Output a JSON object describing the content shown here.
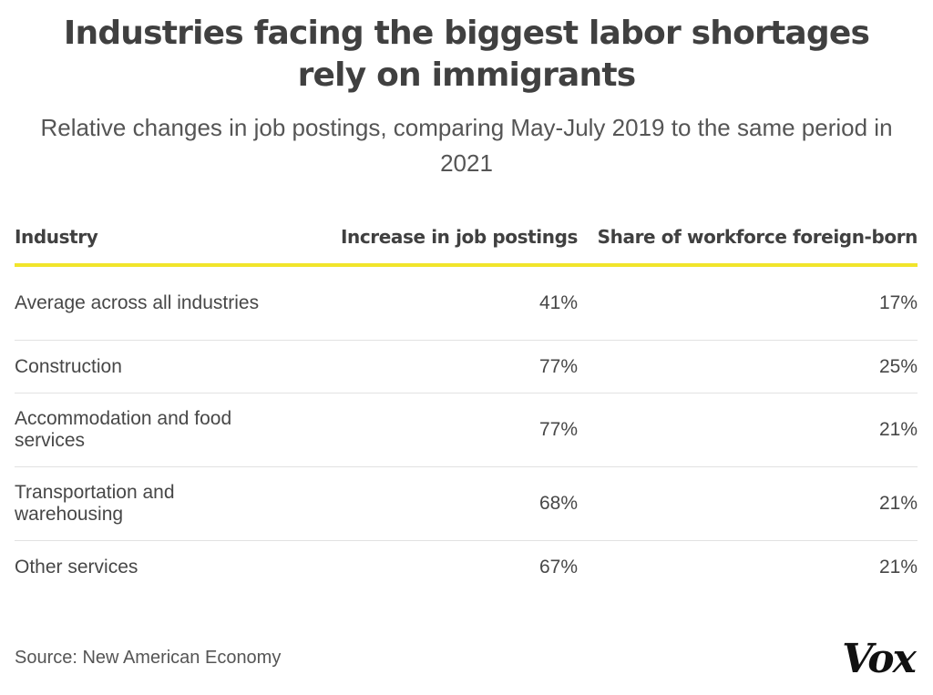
{
  "chart_data": {
    "type": "table",
    "title": "Industries facing the biggest labor shortages rely on immigrants",
    "subtitle": "Relative changes in job postings, comparing May-July 2019 to the same period in 2021",
    "columns": [
      "Industry",
      "Increase in job postings",
      "Share of workforce foreign-born"
    ],
    "rows": [
      {
        "industry": "Average across all industries",
        "increase": "41%",
        "share": "17%"
      },
      {
        "industry": "Construction",
        "increase": "77%",
        "share": "25%"
      },
      {
        "industry": "Accommodation and food services",
        "increase": "77%",
        "share": "21%"
      },
      {
        "industry": "Transportation and warehousing",
        "increase": "68%",
        "share": "21%"
      },
      {
        "industry": "Other services",
        "increase": "67%",
        "share": "21%"
      }
    ],
    "source": "Source: New American Economy",
    "logo": "Vox",
    "colors": {
      "header_rule": "#f1e52b",
      "row_rule": "#e2e2e2",
      "text": "#404040"
    }
  }
}
